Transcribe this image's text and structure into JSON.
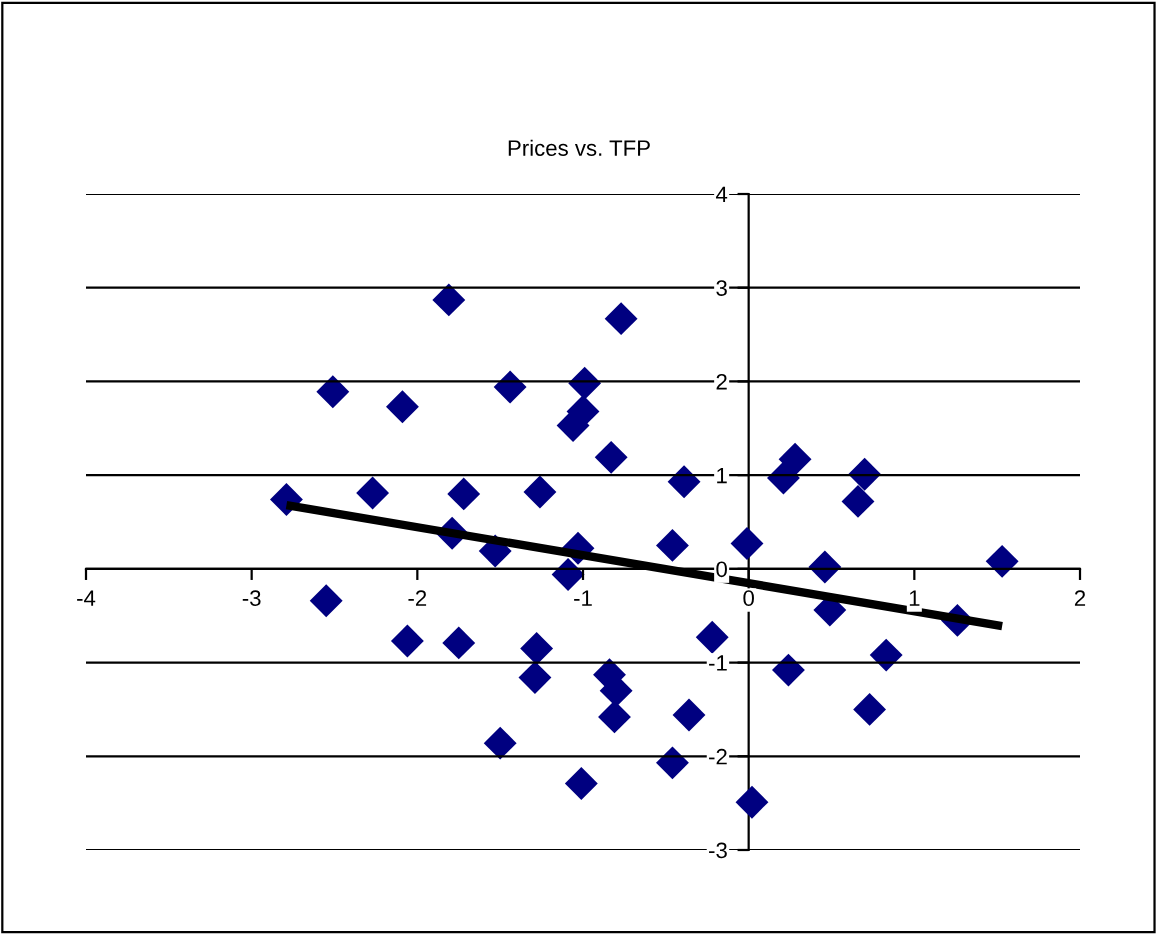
{
  "chart_data": {
    "type": "scatter",
    "title": "Prices vs. TFP",
    "marker": "diamond",
    "grid": "y",
    "xlim": [
      -4,
      2
    ],
    "ylim": [
      -3,
      4
    ],
    "xticks": [
      -4,
      -3,
      -2,
      -1,
      0,
      1,
      2
    ],
    "yticks": [
      -3,
      -2,
      -1,
      0,
      1,
      2,
      3,
      4
    ],
    "series": [
      {
        "color": "#000080",
        "x": [
          -2.79,
          -2.51,
          -2.55,
          -2.27,
          -2.09,
          -2.06,
          -1.81,
          -1.79,
          -1.72,
          -1.75,
          -1.53,
          -1.5,
          -1.44,
          -1.26,
          -1.28,
          -1.29,
          -1.09,
          -1.06,
          -1.03,
          -1.0,
          -0.99,
          -1.01,
          -0.83,
          -0.77,
          -0.84,
          -0.8,
          -0.81,
          -0.46,
          -0.39,
          -0.22,
          -0.36,
          -0.46,
          -0.01,
          0.02,
          0.21,
          0.28,
          0.46,
          0.49,
          0.24,
          0.66,
          0.7,
          0.73,
          0.83,
          1.26,
          1.53
        ],
        "values": [
          0.74,
          1.89,
          -0.34,
          0.81,
          1.73,
          -0.77,
          2.87,
          0.38,
          0.8,
          -0.79,
          0.19,
          -1.86,
          1.94,
          0.82,
          -0.85,
          -1.16,
          -0.06,
          1.53,
          0.22,
          1.68,
          1.98,
          -2.29,
          1.19,
          2.67,
          -1.13,
          -1.3,
          -1.58,
          0.25,
          0.93,
          -0.73,
          -1.56,
          -2.07,
          0.27,
          -2.49,
          0.97,
          1.17,
          0.02,
          -0.44,
          -1.08,
          0.72,
          1.01,
          -1.5,
          -0.92,
          -0.55,
          0.08
        ]
      },
      {
        "type": "line",
        "color": "#000000",
        "marker": "none",
        "x": [
          -2.79,
          1.53
        ],
        "values": [
          0.68,
          -0.61
        ]
      }
    ]
  }
}
